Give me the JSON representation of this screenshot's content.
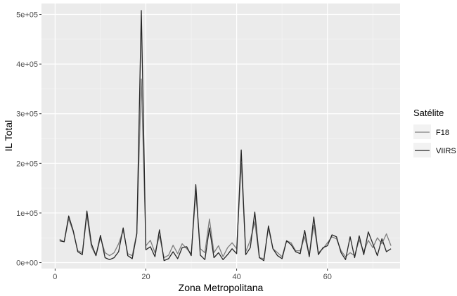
{
  "chart_data": {
    "type": "line",
    "title": "",
    "xlabel": "Zona Metropolitana",
    "ylabel": "IL Total",
    "xlim": [
      -3,
      76
    ],
    "ylim": [
      -12000,
      522000
    ],
    "x_ticks": [
      0,
      20,
      40,
      60
    ],
    "x_tick_labels": [
      "0",
      "20",
      "40",
      "60"
    ],
    "y_ticks": [
      0,
      100000,
      200000,
      300000,
      400000,
      500000
    ],
    "y_tick_labels": [
      "0e+00",
      "1e+05",
      "2e+05",
      "3e+05",
      "4e+05",
      "5e+05"
    ],
    "grid": true,
    "legend": {
      "title": "Satélite",
      "position": "right"
    },
    "x": [
      1,
      2,
      3,
      4,
      5,
      6,
      7,
      8,
      9,
      10,
      11,
      12,
      13,
      14,
      15,
      16,
      17,
      18,
      19,
      20,
      21,
      22,
      23,
      24,
      25,
      26,
      27,
      28,
      29,
      30,
      31,
      32,
      33,
      34,
      35,
      36,
      37,
      38,
      39,
      40,
      41,
      42,
      43,
      44,
      45,
      46,
      47,
      48,
      49,
      50,
      51,
      52,
      53,
      54,
      55,
      56,
      57,
      58,
      59,
      60,
      61,
      62,
      63,
      64,
      65,
      66,
      67,
      68,
      69,
      70,
      71,
      72,
      73,
      74
    ],
    "series": [
      {
        "name": "F18",
        "color": "#7f7f7f",
        "values": [
          47000,
          42000,
          88000,
          62000,
          24000,
          20000,
          95000,
          32000,
          14000,
          50000,
          20000,
          14000,
          20000,
          38000,
          65000,
          18000,
          14000,
          60000,
          370000,
          34000,
          45000,
          20000,
          54000,
          10000,
          15000,
          35000,
          18000,
          38000,
          28000,
          18000,
          140000,
          28000,
          20000,
          88000,
          20000,
          34000,
          12000,
          30000,
          40000,
          28000,
          200000,
          22000,
          45000,
          82000,
          10000,
          8000,
          70000,
          28000,
          20000,
          12000,
          44000,
          40000,
          24000,
          24000,
          52000,
          14000,
          75000,
          20000,
          28000,
          40000,
          52000,
          48000,
          24000,
          12000,
          20000,
          14000,
          46000,
          22000,
          45000,
          30000,
          50000,
          38000,
          58000,
          34000
        ]
      },
      {
        "name": "VIIRS",
        "color": "#262626",
        "values": [
          44000,
          42000,
          94000,
          64000,
          22000,
          16000,
          104000,
          38000,
          14000,
          55000,
          10000,
          6000,
          10000,
          22000,
          70000,
          14000,
          8000,
          58000,
          508000,
          26000,
          32000,
          12000,
          66000,
          4000,
          8000,
          22000,
          8000,
          30000,
          32000,
          14000,
          157000,
          15000,
          6000,
          70000,
          10000,
          20000,
          6000,
          16000,
          28000,
          18000,
          227000,
          16000,
          30000,
          102000,
          10000,
          4000,
          74000,
          28000,
          14000,
          8000,
          44000,
          36000,
          22000,
          18000,
          65000,
          12000,
          92000,
          16000,
          30000,
          34000,
          56000,
          52000,
          20000,
          6000,
          52000,
          10000,
          54000,
          16000,
          62000,
          38000,
          14000,
          48000,
          22000,
          28000
        ]
      }
    ]
  }
}
